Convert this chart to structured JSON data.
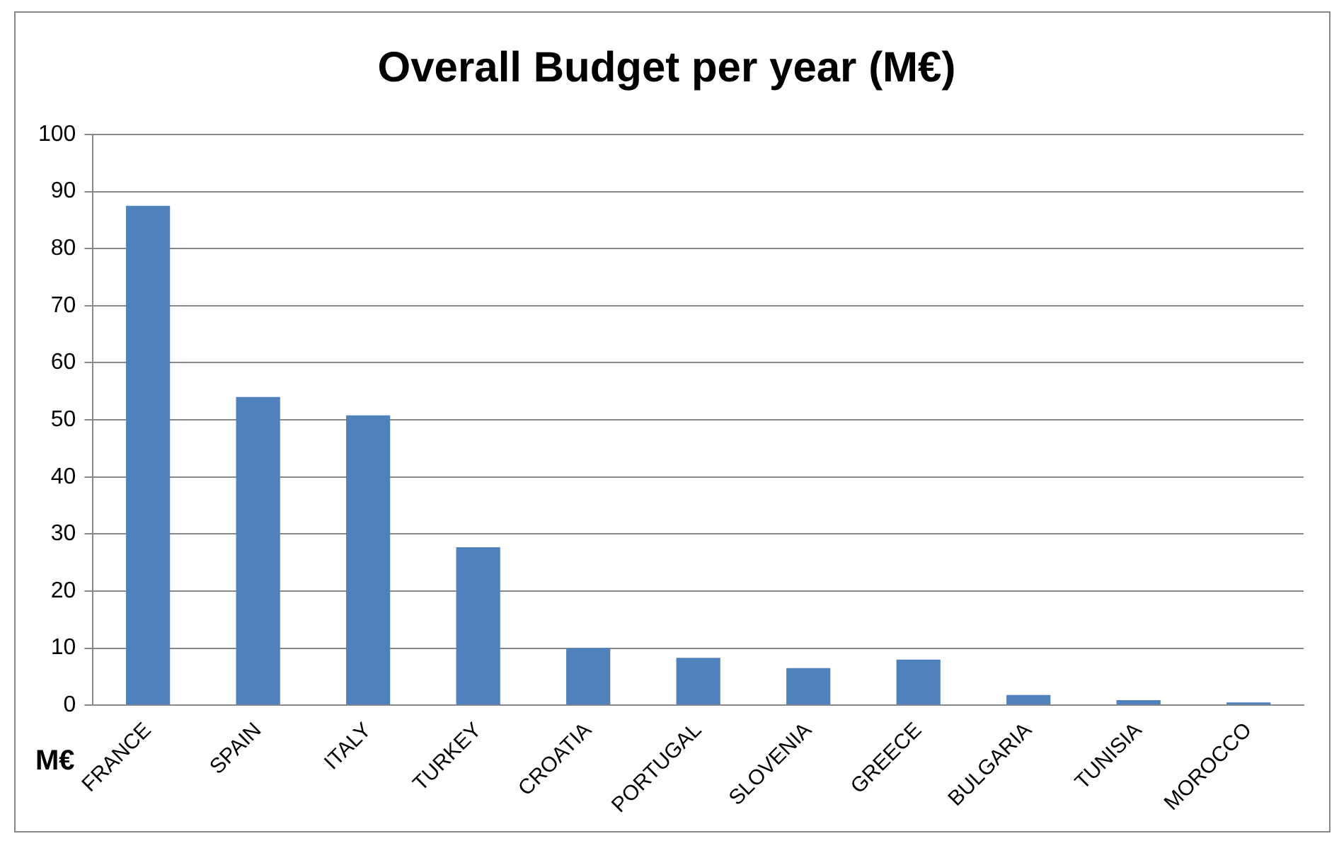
{
  "chart_data": {
    "type": "bar",
    "title": "Overall Budget per year (M€)",
    "ylabel": "M€",
    "categories": [
      "FRANCE",
      "SPAIN",
      "ITALY",
      "TURKEY",
      "CROATIA",
      "PORTUGAL",
      "SLOVENIA",
      "GREECE",
      "BULGARIA",
      "TUNISIA",
      "MOROCCO"
    ],
    "values": [
      87.5,
      54,
      50.8,
      27.7,
      10,
      8.3,
      6.5,
      8,
      1.8,
      0.9,
      0.5
    ],
    "color": "#4f81bd",
    "ylim": [
      0,
      100
    ],
    "yticks": [
      0,
      10,
      20,
      30,
      40,
      50,
      60,
      70,
      80,
      90,
      100
    ],
    "grid": "y",
    "legend": false
  }
}
